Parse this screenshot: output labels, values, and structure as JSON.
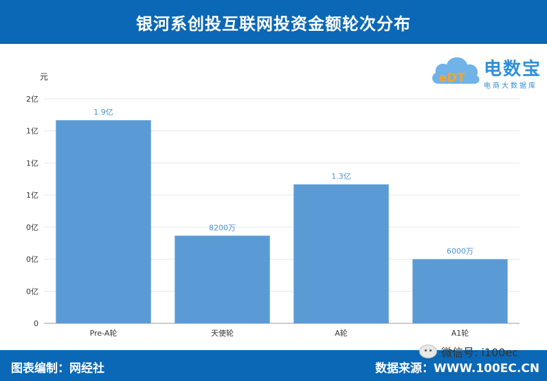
{
  "header": {
    "title": "银河系创投互联网投资金额轮次分布"
  },
  "logo": {
    "name": "电数宝",
    "sub": "电商大数据库",
    "mark": "eDT",
    "icon": "cloud-icon"
  },
  "chart_data": {
    "type": "bar",
    "title": "银河系创投互联网投资金额轮次分布",
    "ylabel": "元",
    "xlabel": "",
    "categories": [
      "Pre-A轮",
      "天使轮",
      "A轮",
      "A1轮"
    ],
    "values": [
      190000000,
      82000000,
      130000000,
      60000000
    ],
    "data_labels": [
      "1.9亿",
      "8200万",
      "1.3亿",
      "6000万"
    ],
    "yticks": [
      "0",
      "0亿",
      "0亿",
      "0亿",
      "1亿",
      "1亿",
      "1亿",
      "2亿"
    ],
    "ylim": [
      0,
      210000000
    ],
    "grid": true,
    "color": "#5b9bd5"
  },
  "footer": {
    "credit": "图表编制：网经社",
    "source": "数据来源：WWW.100EC.CN",
    "wechat": "微信号: i100ec",
    "wechat_icon": "wechat-icon"
  }
}
